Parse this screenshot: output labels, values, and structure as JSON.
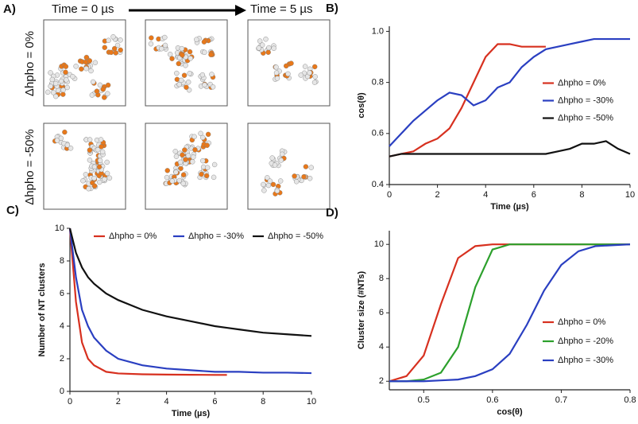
{
  "panel_a": {
    "label": "A)",
    "time_start": "Time = 0 µs",
    "time_end": "Time = 5 µs",
    "rows": [
      "Δhpho = 0%",
      "Δhpho = -50%"
    ]
  },
  "chart_data": [
    {
      "type": "line",
      "panel_label": "B)",
      "xlabel": "Time (µs)",
      "ylabel": "cos(θ)",
      "x": [
        0,
        0.5,
        1,
        1.5,
        2,
        2.5,
        3,
        3.5,
        4,
        4.5,
        5,
        5.5,
        6,
        6.5,
        7,
        7.5,
        8,
        8.5,
        9,
        9.5,
        10
      ],
      "xlim": [
        0,
        10
      ],
      "xticks": [
        0,
        2,
        4,
        6,
        8,
        10
      ],
      "ylim": [
        0.4,
        1.02
      ],
      "yticks": [
        0.4,
        0.6,
        0.8,
        {
          "value": 1,
          "label": "1.0"
        }
      ],
      "legend": "center right",
      "series": [
        {
          "name": "Δhpho = 0%",
          "color": "#d7301f",
          "values": [
            0.51,
            0.52,
            0.53,
            0.56,
            0.58,
            0.62,
            0.7,
            0.8,
            0.9,
            0.95,
            0.95,
            0.94,
            0.94,
            0.94,
            null,
            null,
            null,
            null,
            null,
            null,
            null
          ]
        },
        {
          "name": "Δhpho = -30%",
          "color": "#2a3fc1",
          "values": [
            0.55,
            0.6,
            0.65,
            0.69,
            0.73,
            0.76,
            0.75,
            0.71,
            0.73,
            0.78,
            0.8,
            0.86,
            0.9,
            0.93,
            0.94,
            0.95,
            0.96,
            0.97,
            0.97,
            0.97,
            0.97
          ]
        },
        {
          "name": "Δhpho = -50%",
          "color": "#111111",
          "values": [
            0.51,
            0.52,
            0.52,
            0.52,
            0.52,
            0.52,
            0.52,
            0.52,
            0.52,
            0.52,
            0.52,
            0.52,
            0.52,
            0.52,
            0.53,
            0.54,
            0.56,
            0.56,
            0.57,
            0.54,
            0.52
          ]
        }
      ]
    },
    {
      "type": "line",
      "panel_label": "C)",
      "xlabel": "Time (µs)",
      "ylabel": "Number of NT clusters",
      "x": [
        0,
        0.25,
        0.5,
        0.75,
        1,
        1.5,
        2,
        3,
        4,
        5,
        6,
        6.5,
        7,
        8,
        9,
        10
      ],
      "xlim": [
        0,
        10
      ],
      "xticks": [
        0,
        2,
        4,
        6,
        8,
        10
      ],
      "ylim": [
        0,
        10
      ],
      "yticks": [
        0,
        2,
        4,
        6,
        8,
        10
      ],
      "legend": "top",
      "series": [
        {
          "name": "Δhpho = 0%",
          "color": "#d7301f",
          "values": [
            10,
            5.5,
            3,
            2,
            1.6,
            1.2,
            1.1,
            1.05,
            1.03,
            1.02,
            1.01,
            1.01,
            null,
            null,
            null,
            null
          ]
        },
        {
          "name": "Δhpho = -30%",
          "color": "#2a3fc1",
          "values": [
            10,
            7,
            5,
            4,
            3.3,
            2.5,
            2,
            1.6,
            1.4,
            1.3,
            1.2,
            1.2,
            1.2,
            1.15,
            1.15,
            1.12
          ]
        },
        {
          "name": "Δhpho = -50%",
          "color": "#111111",
          "values": [
            10,
            8.5,
            7.6,
            7,
            6.6,
            6,
            5.6,
            5,
            4.6,
            4.3,
            4,
            3.9,
            3.8,
            3.6,
            3.5,
            3.4
          ]
        }
      ]
    },
    {
      "type": "line",
      "panel_label": "D)",
      "xlabel": "cos(θ)",
      "ylabel": "Cluster size (#NTs)",
      "x": [
        0.45,
        0.475,
        0.5,
        0.525,
        0.55,
        0.575,
        0.6,
        0.625,
        0.65,
        0.675,
        0.7,
        0.725,
        0.75,
        0.8
      ],
      "xlim": [
        0.45,
        0.8
      ],
      "xticks": [
        0.5,
        0.6,
        0.7,
        0.8
      ],
      "ylim": [
        1.5,
        10.8
      ],
      "yticks": [
        2,
        4,
        6,
        8,
        10
      ],
      "legend": "lower right",
      "series": [
        {
          "name": "Δhpho = 0%",
          "color": "#d7301f",
          "values": [
            2,
            2.3,
            3.5,
            6.5,
            9.2,
            9.9,
            10,
            10,
            10,
            10,
            10,
            10,
            10,
            10
          ]
        },
        {
          "name": "Δhpho = -20%",
          "color": "#2ca02c",
          "values": [
            2,
            2,
            2.1,
            2.5,
            4,
            7.5,
            9.7,
            10,
            10,
            10,
            10,
            10,
            10,
            10
          ]
        },
        {
          "name": "Δhpho = -30%",
          "color": "#2a3fc1",
          "values": [
            2,
            2,
            2,
            2.05,
            2.1,
            2.3,
            2.7,
            3.6,
            5.3,
            7.3,
            8.8,
            9.6,
            9.9,
            10
          ]
        }
      ]
    }
  ]
}
